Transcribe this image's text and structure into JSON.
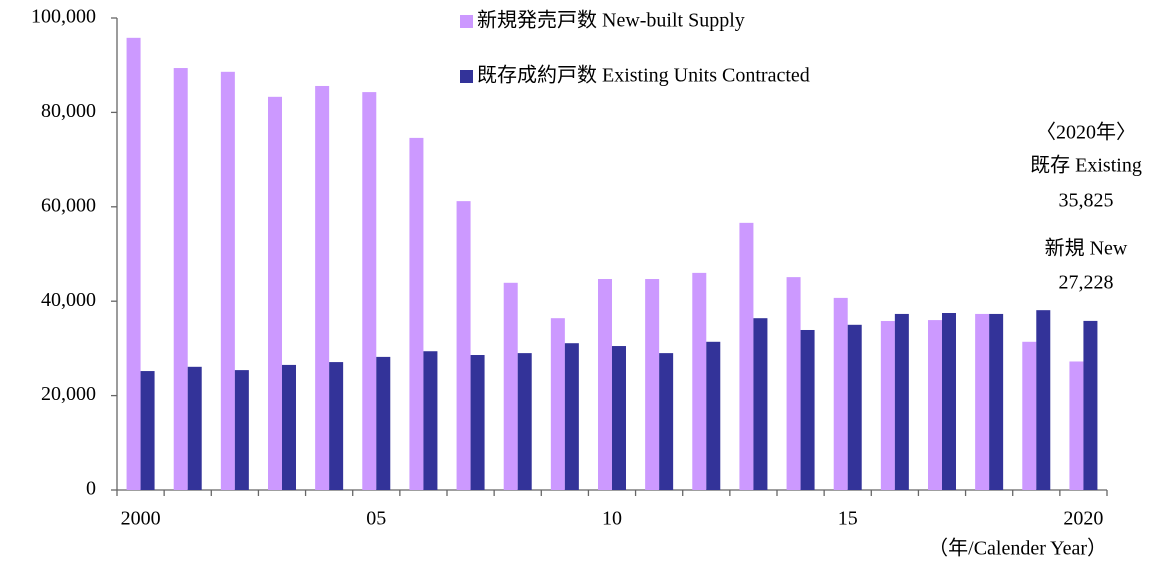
{
  "chart_data": {
    "type": "bar",
    "categories": [
      "2000",
      null,
      null,
      null,
      null,
      "05",
      null,
      null,
      null,
      null,
      "10",
      null,
      null,
      null,
      null,
      "15",
      null,
      null,
      null,
      null,
      "2020"
    ],
    "series": [
      {
        "name": "新規発売戸数 New-built Supply",
        "color": "#cc99ff",
        "values": [
          95800,
          89400,
          88600,
          83300,
          85600,
          84300,
          74600,
          61200,
          43900,
          36400,
          44700,
          44700,
          46000,
          56600,
          45100,
          40700,
          35800,
          36000,
          37300,
          31400,
          27228
        ]
      },
      {
        "name": "既存成約戸数 Existing Units Contracted",
        "color": "#333399",
        "values": [
          25200,
          26100,
          25400,
          26500,
          27100,
          28200,
          29400,
          28600,
          29000,
          31100,
          30500,
          29000,
          31400,
          36400,
          33900,
          35000,
          37300,
          37500,
          37300,
          38100,
          35825
        ]
      }
    ],
    "ylim": [
      0,
      100000
    ],
    "yticks": [
      0,
      {
        "value": 20000,
        "label": "20,000"
      },
      {
        "value": 40000,
        "label": "40,000"
      },
      {
        "value": 60000,
        "label": "60,000"
      },
      {
        "value": 80000,
        "label": "80,000"
      },
      {
        "value": 100000,
        "label": "100,000"
      }
    ],
    "x_label": "（年/Calender Year）",
    "annotations": [
      "〈2020年〉",
      "既存 Existing",
      "35,825",
      "新規 New",
      "27,228"
    ],
    "grid": false,
    "legend": "top"
  }
}
